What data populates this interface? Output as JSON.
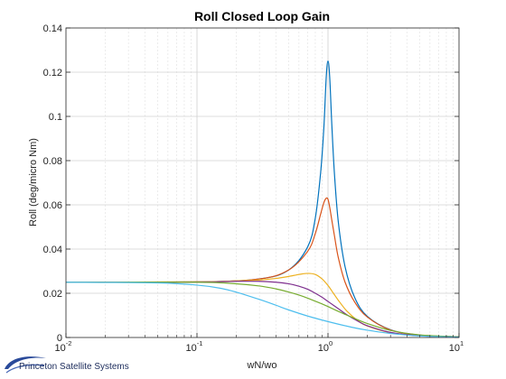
{
  "chart_data": {
    "type": "line",
    "title": "Roll Closed Loop Gain",
    "xlabel": "wN/wo",
    "ylabel": "Roll (deg/micro Nm)",
    "xscale": "log",
    "xlim": [
      0.01,
      10
    ],
    "ylim": [
      0,
      0.14
    ],
    "grid": true,
    "x_ticks": [
      {
        "base": "10",
        "exp": "-2"
      },
      {
        "base": "10",
        "exp": "-1"
      },
      {
        "base": "10",
        "exp": "0"
      },
      {
        "base": "10",
        "exp": "1"
      }
    ],
    "y_ticks": [
      "0",
      "0.02",
      "0.04",
      "0.06",
      "0.08",
      "0.1",
      "0.12",
      "0.14"
    ],
    "series": [
      {
        "color": "#0072BD",
        "x": [
          0.01,
          0.1,
          0.3,
          0.5,
          0.7,
          0.8,
          0.88,
          0.93,
          0.97,
          1.0,
          1.03,
          1.07,
          1.12,
          1.2,
          1.35,
          1.6,
          2.0,
          3.0,
          5.0,
          10.0
        ],
        "y": [
          0.025,
          0.0251,
          0.0265,
          0.0305,
          0.041,
          0.054,
          0.075,
          0.095,
          0.118,
          0.125,
          0.118,
          0.096,
          0.074,
          0.052,
          0.032,
          0.018,
          0.0095,
          0.0035,
          0.0011,
          0.0003
        ]
      },
      {
        "color": "#D95319",
        "x": [
          0.01,
          0.1,
          0.3,
          0.5,
          0.7,
          0.8,
          0.88,
          0.93,
          0.97,
          1.0,
          1.03,
          1.07,
          1.12,
          1.2,
          1.35,
          1.6,
          2.0,
          3.0,
          5.0,
          10.0
        ],
        "y": [
          0.025,
          0.0251,
          0.0265,
          0.0305,
          0.039,
          0.047,
          0.056,
          0.061,
          0.063,
          0.0625,
          0.059,
          0.053,
          0.046,
          0.036,
          0.025,
          0.016,
          0.0092,
          0.0034,
          0.0011,
          0.0003
        ]
      },
      {
        "color": "#EDB120",
        "x": [
          0.01,
          0.1,
          0.2,
          0.3,
          0.4,
          0.5,
          0.6,
          0.7,
          0.8,
          0.9,
          1.0,
          1.1,
          1.2,
          1.4,
          1.7,
          2.0,
          3.0,
          5.0,
          10.0
        ],
        "y": [
          0.025,
          0.0252,
          0.0256,
          0.026,
          0.0267,
          0.0276,
          0.0285,
          0.029,
          0.0285,
          0.0265,
          0.0235,
          0.02,
          0.0168,
          0.0118,
          0.0075,
          0.0052,
          0.0022,
          0.0008,
          0.0002
        ]
      },
      {
        "color": "#7E2F8E",
        "x": [
          0.01,
          0.1,
          0.2,
          0.3,
          0.4,
          0.5,
          0.6,
          0.7,
          0.8,
          0.9,
          1.0,
          1.2,
          1.4,
          1.7,
          2.0,
          3.0,
          5.0,
          10.0
        ],
        "y": [
          0.025,
          0.0251,
          0.0254,
          0.0254,
          0.025,
          0.0243,
          0.0232,
          0.0218,
          0.02,
          0.0182,
          0.0163,
          0.013,
          0.0102,
          0.0073,
          0.0053,
          0.0023,
          0.0008,
          0.0002
        ]
      },
      {
        "color": "#77AC30",
        "x": [
          0.01,
          0.1,
          0.2,
          0.3,
          0.4,
          0.5,
          0.6,
          0.7,
          0.8,
          0.9,
          1.0,
          1.2,
          1.5,
          2.0,
          3.0,
          5.0,
          10.0
        ],
        "y": [
          0.025,
          0.025,
          0.0243,
          0.0233,
          0.022,
          0.0206,
          0.0192,
          0.0178,
          0.0164,
          0.0152,
          0.014,
          0.0118,
          0.0093,
          0.0063,
          0.0032,
          0.0012,
          0.0003
        ]
      },
      {
        "color": "#4DBEEE",
        "x": [
          0.01,
          0.05,
          0.1,
          0.15,
          0.2,
          0.3,
          0.4,
          0.5,
          0.7,
          1.0,
          1.5,
          2.0,
          3.0,
          5.0,
          10.0
        ],
        "y": [
          0.025,
          0.0247,
          0.0237,
          0.0223,
          0.0205,
          0.0172,
          0.0146,
          0.0125,
          0.0097,
          0.0072,
          0.0047,
          0.0033,
          0.0018,
          0.0007,
          0.0002
        ]
      }
    ]
  },
  "footer": {
    "logo_text": "Princeton Satellite Systems"
  }
}
